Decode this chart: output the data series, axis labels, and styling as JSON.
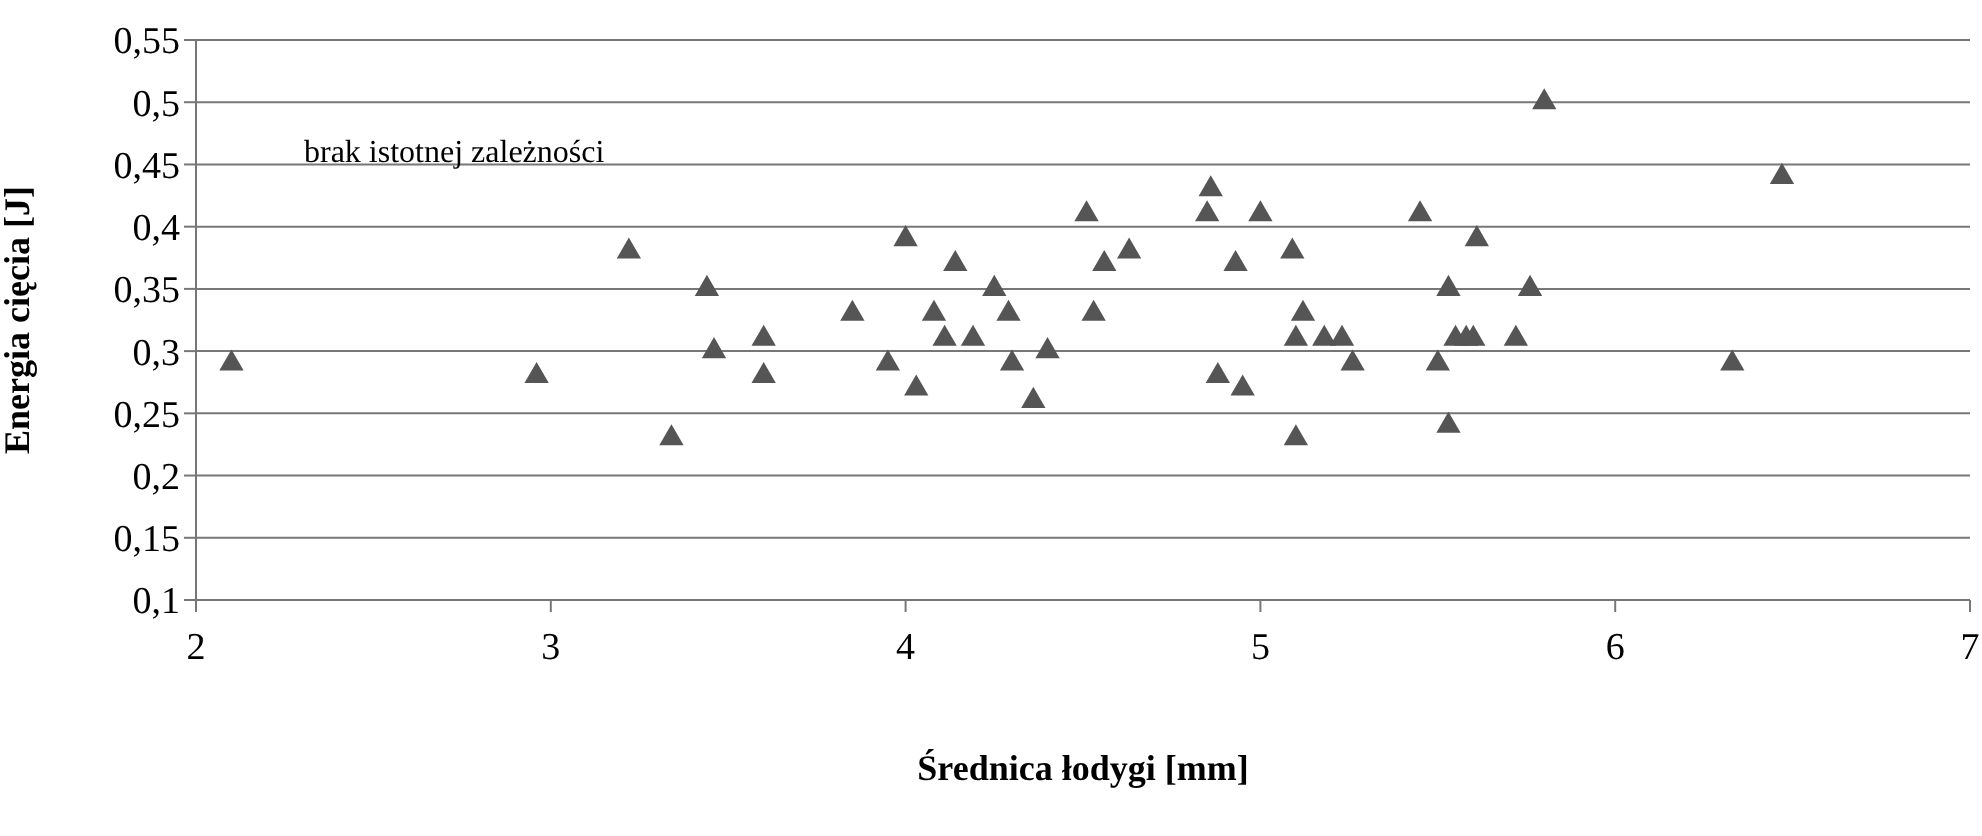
{
  "chart_data": {
    "type": "scatter",
    "xlabel": "Średnica łodygi [mm]",
    "ylabel": "Energia cięcia [J]",
    "annotations": [
      "brak istotnej zależności"
    ],
    "x": [
      2.1,
      2.96,
      3.22,
      3.34,
      3.44,
      3.46,
      3.6,
      3.6,
      3.85,
      3.95,
      4.0,
      4.03,
      4.08,
      4.11,
      4.14,
      4.19,
      4.25,
      4.29,
      4.3,
      4.36,
      4.4,
      4.51,
      4.53,
      4.56,
      4.63,
      4.85,
      4.86,
      4.88,
      4.93,
      4.95,
      5.0,
      5.09,
      5.1,
      5.1,
      5.12,
      5.18,
      5.23,
      5.26,
      5.45,
      5.5,
      5.53,
      5.53,
      5.55,
      5.58,
      5.61,
      5.6,
      5.72,
      5.76,
      5.8,
      6.33,
      6.47
    ],
    "series": [
      {
        "color": "#555555",
        "values": [
          0.29,
          0.28,
          0.38,
          0.23,
          0.35,
          0.3,
          0.31,
          0.28,
          0.33,
          0.29,
          0.39,
          0.27,
          0.33,
          0.31,
          0.37,
          0.31,
          0.35,
          0.33,
          0.29,
          0.26,
          0.3,
          0.41,
          0.33,
          0.37,
          0.38,
          0.41,
          0.43,
          0.28,
          0.37,
          0.27,
          0.41,
          0.38,
          0.31,
          0.23,
          0.33,
          0.31,
          0.31,
          0.29,
          0.41,
          0.29,
          0.35,
          0.24,
          0.31,
          0.31,
          0.39,
          0.31,
          0.31,
          0.35,
          0.5,
          0.29,
          0.44
        ]
      }
    ],
    "xlim": [
      2,
      7
    ],
    "xticks": [
      2,
      3,
      4,
      5,
      6,
      7
    ],
    "ylim": [
      0.1,
      0.55
    ],
    "yticks": [
      {
        "value": 0.1,
        "label": "0,1"
      },
      {
        "value": 0.15,
        "label": "0,15"
      },
      {
        "value": 0.2,
        "label": "0,2"
      },
      {
        "value": 0.25,
        "label": "0,25"
      },
      {
        "value": 0.3,
        "label": "0,3"
      },
      {
        "value": 0.35,
        "label": "0,35"
      },
      {
        "value": 0.4,
        "label": "0,4"
      },
      {
        "value": 0.45,
        "label": "0,45"
      },
      {
        "value": 0.5,
        "label": "0,5"
      },
      {
        "value": 0.55,
        "label": "0,55"
      }
    ],
    "grid": "y",
    "marker": "triangle"
  }
}
